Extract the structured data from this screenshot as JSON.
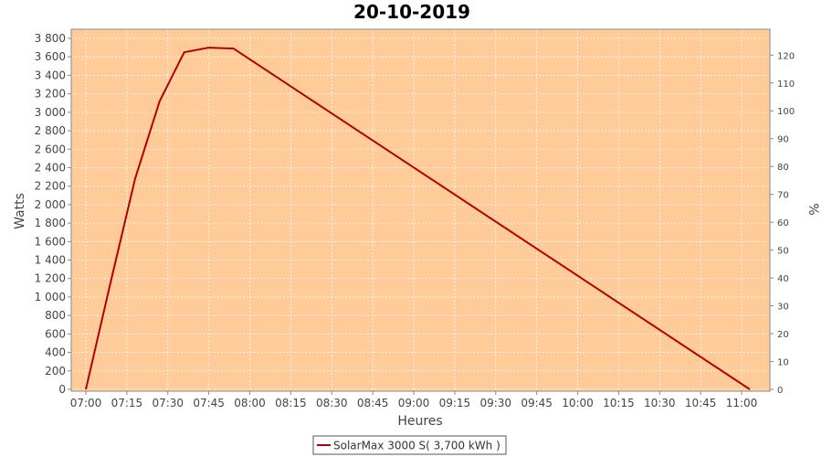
{
  "chart_data": {
    "type": "line",
    "title": "20-10-2019",
    "xlabel": "Heures",
    "ylabel": "Watts",
    "y2label": "%",
    "xticks": [
      "07:00",
      "07:15",
      "07:30",
      "07:45",
      "08:00",
      "08:15",
      "08:30",
      "08:45",
      "09:00",
      "09:15",
      "09:30",
      "09:45",
      "10:00",
      "10:15",
      "10:30",
      "10:45",
      "11:00"
    ],
    "xlim": [
      "07:00",
      "11:05"
    ],
    "ylim": [
      0,
      3800
    ],
    "yticks": [
      "0",
      "200",
      "400",
      "600",
      "800",
      "1 000",
      "1 200",
      "1 400",
      "1 600",
      "1 800",
      "2 000",
      "2 200",
      "2 400",
      "2 600",
      "2 800",
      "3 000",
      "3 200",
      "3 400",
      "3 600",
      "3 800"
    ],
    "y2lim": [
      0,
      126
    ],
    "y2ticks": [
      "0",
      "10",
      "20",
      "30",
      "40",
      "50",
      "60",
      "70",
      "80",
      "90",
      "100",
      "110",
      "120"
    ],
    "grid": true,
    "background_color": "#ffcc99",
    "legend_position": "bottom",
    "series": [
      {
        "name": "SolarMax 3000 S( 3,700 kWh )",
        "color": "#b20000",
        "x": [
          "07:00",
          "07:09",
          "07:18",
          "07:27",
          "07:36",
          "07:45",
          "07:54",
          "11:03"
        ],
        "y": [
          0,
          1150,
          2280,
          3120,
          3650,
          3700,
          3690,
          0
        ]
      }
    ]
  }
}
